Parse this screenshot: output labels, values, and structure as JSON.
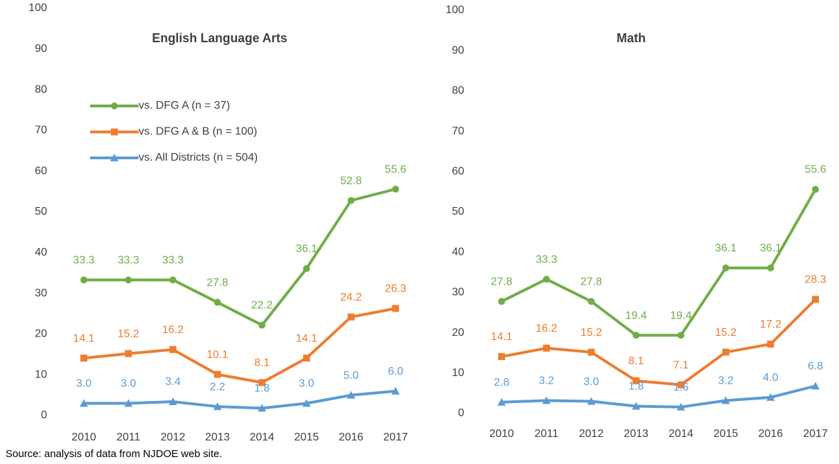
{
  "chart_data": [
    {
      "type": "line",
      "title": "English Language Arts",
      "categories": [
        "2010",
        "2011",
        "2012",
        "2013",
        "2014",
        "2015",
        "2016",
        "2017"
      ],
      "ylim": [
        0,
        100
      ],
      "yticks": [
        0,
        10,
        20,
        30,
        40,
        50,
        60,
        70,
        80,
        90,
        100
      ],
      "grid": false,
      "legend": "upper left",
      "series": [
        {
          "name": "vs. DFG A (n = 37)",
          "color": "#70ad47",
          "marker": "circle",
          "values": [
            33.3,
            33.3,
            33.3,
            27.8,
            22.2,
            36.1,
            52.8,
            55.6
          ],
          "value_labels": [
            "33.3",
            "33.3",
            "33.3",
            "27.8",
            "22.2",
            "36.1",
            "52.8",
            "55.6"
          ]
        },
        {
          "name": "vs. DFG A & B (n = 100)",
          "color": "#ed7d31",
          "marker": "square",
          "values": [
            14.1,
            15.2,
            16.2,
            10.1,
            8.1,
            14.1,
            24.2,
            26.3
          ],
          "value_labels": [
            "14.1",
            "15.2",
            "16.2",
            "10.1",
            "8.1",
            "14.1",
            "24.2",
            "26.3"
          ]
        },
        {
          "name": "vs. All Districts (n = 504)",
          "color": "#5b9bd5",
          "marker": "triangle",
          "values": [
            3.0,
            3.0,
            3.4,
            2.2,
            1.8,
            3.0,
            5.0,
            6.0
          ],
          "value_labels": [
            "3.0",
            "3.0",
            "3.4",
            "2.2",
            "1.8",
            "3.0",
            "5.0",
            "6.0"
          ]
        }
      ]
    },
    {
      "type": "line",
      "title": "Math",
      "categories": [
        "2010",
        "2011",
        "2012",
        "2013",
        "2014",
        "2015",
        "2016",
        "2017"
      ],
      "ylim": [
        0,
        100
      ],
      "yticks": [
        0,
        10,
        20,
        30,
        40,
        50,
        60,
        70,
        80,
        90,
        100
      ],
      "grid": false,
      "series": [
        {
          "color": "#70ad47",
          "marker": "circle",
          "values": [
            27.8,
            33.3,
            27.8,
            19.4,
            19.4,
            36.1,
            36.1,
            55.6
          ],
          "value_labels": [
            "27.8",
            "33.3",
            "27.8",
            "19.4",
            "19.4",
            "36.1",
            "36.1",
            "55.6"
          ]
        },
        {
          "color": "#ed7d31",
          "marker": "square",
          "values": [
            14.1,
            16.2,
            15.2,
            8.1,
            7.1,
            15.2,
            17.2,
            28.3
          ],
          "value_labels": [
            "14.1",
            "16.2",
            "15.2",
            "8.1",
            "7.1",
            "15.2",
            "17.2",
            "28.3"
          ]
        },
        {
          "color": "#5b9bd5",
          "marker": "triangle",
          "values": [
            2.8,
            3.2,
            3.0,
            1.8,
            1.6,
            3.2,
            4.0,
            6.8
          ],
          "value_labels": [
            "2.8",
            "3.2",
            "3.0",
            "1.8",
            "1.6",
            "3.2",
            "4.0",
            "6.8"
          ]
        }
      ]
    }
  ],
  "source": "Source: analysis of data from NJDOE web site."
}
